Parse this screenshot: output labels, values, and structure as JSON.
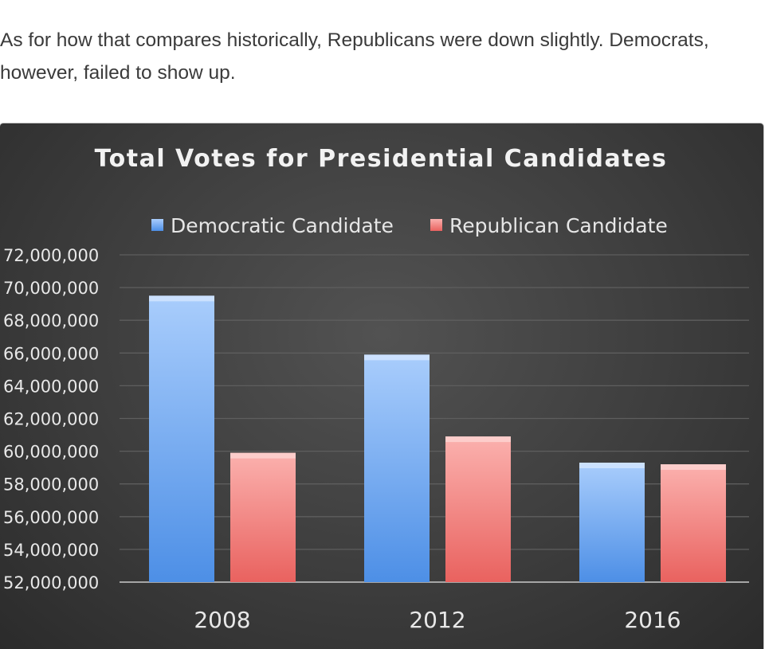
{
  "article": {
    "paragraph": "As for how that compares historically, Republicans were down slightly. Democrats, however, failed to show up."
  },
  "chart_data": {
    "type": "bar",
    "title": "Total Votes for Presidential Candidates",
    "categories": [
      "2008",
      "2012",
      "2016"
    ],
    "series": [
      {
        "name": "Democratic Candidate",
        "values": [
          69500000,
          65900000,
          59300000
        ],
        "color": "#6fa8f0"
      },
      {
        "name": "Republican Candidate",
        "values": [
          59900000,
          60900000,
          59200000
        ],
        "color": "#f07f7f"
      }
    ],
    "ylim": [
      52000000,
      72000000
    ],
    "y_ticks": [
      72000000,
      70000000,
      68000000,
      66000000,
      64000000,
      62000000,
      60000000,
      58000000,
      56000000,
      54000000,
      52000000
    ],
    "y_tick_labels": [
      "72,000,000",
      "70,000,000",
      "68,000,000",
      "66,000,000",
      "64,000,000",
      "62,000,000",
      "60,000,000",
      "58,000,000",
      "56,000,000",
      "54,000,000",
      "52,000,000"
    ],
    "xlabel": "",
    "ylabel": "",
    "legend_position": "top",
    "grid": true
  }
}
